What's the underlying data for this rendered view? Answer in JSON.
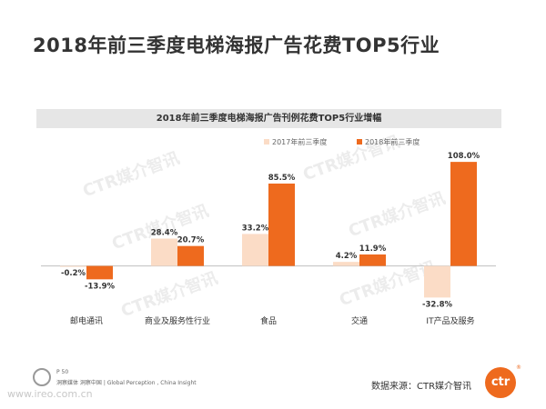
{
  "page": {
    "title": "2018年前三季度电梯海报广告花费TOP5行业"
  },
  "chart_data": {
    "type": "bar",
    "title": "2018年前三季度电梯海报广告刊例花费TOP5行业增幅",
    "categories": [
      "邮电通讯",
      "商业及服务性行业",
      "食品",
      "交通",
      "IT产品及服务"
    ],
    "series": [
      {
        "name": "2017年前三季度",
        "values": [
          -0.2,
          28.4,
          33.2,
          4.2,
          -32.8
        ],
        "labels": [
          "-0.2%",
          "28.4%",
          "33.2%",
          "4.2%",
          "-32.8%"
        ],
        "color": "#fbdcc6"
      },
      {
        "name": "2018年前三季度",
        "values": [
          -13.9,
          20.7,
          85.5,
          11.9,
          108.0
        ],
        "labels": [
          "-13.9%",
          "20.7%",
          "85.5%",
          "11.9%",
          "108.0%"
        ],
        "color": "#ee6a1e"
      }
    ],
    "ylim": [
      -40,
      110
    ],
    "legend": "top-center",
    "grid": false
  },
  "watermark": {
    "text": "CTR媒介智讯"
  },
  "footer": {
    "page_label": "P 50",
    "motto": "洞察媒体 洞察中国 | Global Perception , China Insight",
    "url": "www.ireo.com.cn",
    "source": "数据来源：CTR媒介智讯",
    "logo_text": "ctr",
    "logo_mark": "®"
  },
  "colors": {
    "accent": "#ee6a1e",
    "light": "#fbdcc6",
    "title_bar": "#e6e6e6"
  }
}
